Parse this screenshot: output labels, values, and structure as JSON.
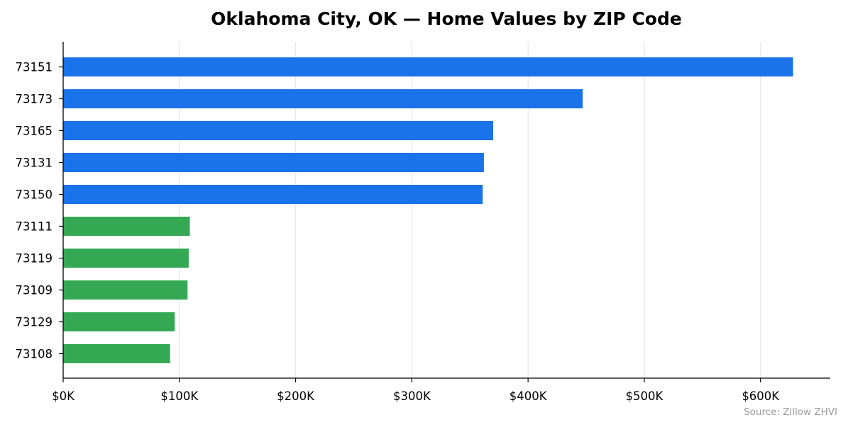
{
  "chart_data": {
    "type": "bar",
    "orientation": "horizontal",
    "title": "Oklahoma City, OK — Home Values by ZIP Code",
    "xlabel": "",
    "ylabel": "",
    "categories": [
      "73151",
      "73173",
      "73165",
      "73131",
      "73150",
      "73111",
      "73119",
      "73109",
      "73129",
      "73108"
    ],
    "values": [
      628000,
      447000,
      370000,
      362000,
      361000,
      109000,
      108000,
      107000,
      96000,
      92000
    ],
    "bar_group": [
      "high",
      "high",
      "high",
      "high",
      "high",
      "low",
      "low",
      "low",
      "low",
      "low"
    ],
    "colors": {
      "high": "#1a73e8",
      "low": "#34a853",
      "grid": "#e6e6e6",
      "axis": "#000000",
      "source": "#9a9a9a"
    },
    "xlim": [
      0,
      660000
    ],
    "x_ticks": [
      0,
      100000,
      200000,
      300000,
      400000,
      500000,
      600000
    ],
    "x_tick_labels": [
      "$0K",
      "$100K",
      "$200K",
      "$300K",
      "$400K",
      "$500K",
      "$600K"
    ],
    "grid": "vertical",
    "legend": "none",
    "source_note": "Source: Zillow ZHVI"
  }
}
